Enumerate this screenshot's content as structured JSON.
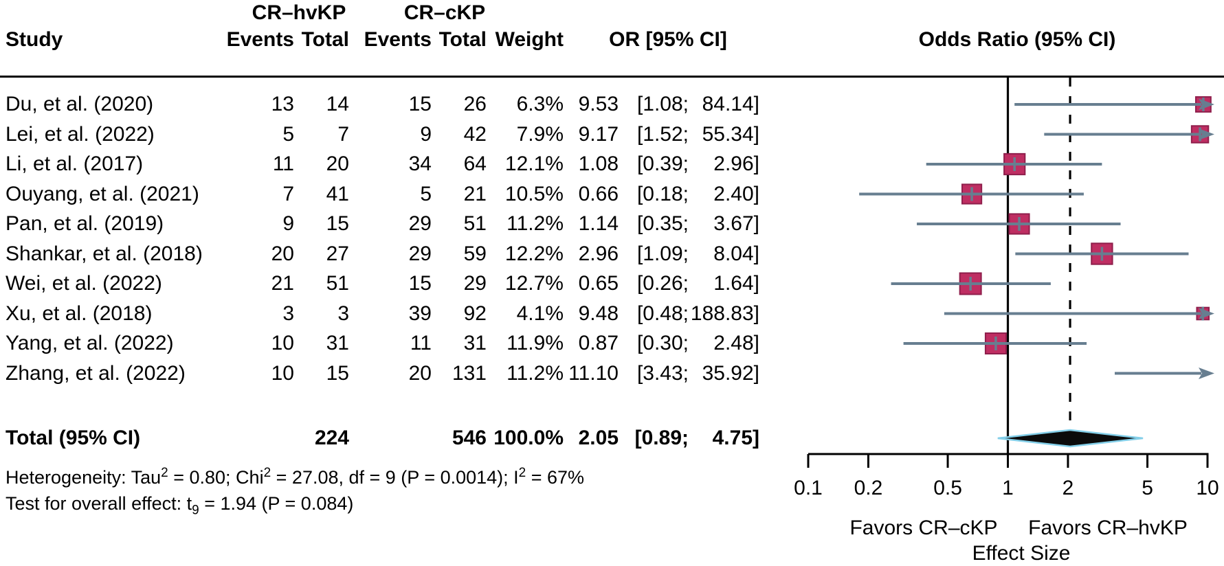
{
  "headers": {
    "group1": "CR–hvKP",
    "group2": "CR–cKP",
    "study": "Study",
    "events1": "Events",
    "total1": "Total",
    "events2": "Events",
    "total2": "Total",
    "weight": "Weight",
    "or_ci": "OR [95% CI]",
    "plot_title": "Odds Ratio (95% CI)"
  },
  "chart_data": {
    "type": "forest",
    "title": "Odds Ratio (95% CI)",
    "x_axis": {
      "scale": "log10",
      "label": "Effect Size",
      "ticks": [
        0.1,
        0.2,
        0.5,
        1,
        2,
        5,
        10
      ],
      "tick_labels": [
        "0.1",
        "0.2",
        "0.5",
        "1",
        "2",
        "5",
        "10"
      ],
      "ref_line": 1,
      "summary_dashed_line": 2.05
    },
    "favors": {
      "left": "Favors CR–cKP",
      "right": "Favors CR–hvKP"
    },
    "studies": [
      {
        "study": "Du, et al. (2020)",
        "events1": 13,
        "total1": 14,
        "events2": 15,
        "total2": 26,
        "weight": "6.3%",
        "weight_val": 6.3,
        "or": 9.53,
        "ci_low": 1.08,
        "ci_high": 84.14,
        "or_s": "9.53",
        "lo_s": "1.08",
        "hi_s": "84.14",
        "arrow_right": true
      },
      {
        "study": "Lei, et al. (2022)",
        "events1": 5,
        "total1": 7,
        "events2": 9,
        "total2": 42,
        "weight": "7.9%",
        "weight_val": 7.9,
        "or": 9.17,
        "ci_low": 1.52,
        "ci_high": 55.34,
        "or_s": "9.17",
        "lo_s": "1.52",
        "hi_s": "55.34",
        "arrow_right": true
      },
      {
        "study": "Li, et al. (2017)",
        "events1": 11,
        "total1": 20,
        "events2": 34,
        "total2": 64,
        "weight": "12.1%",
        "weight_val": 12.1,
        "or": 1.08,
        "ci_low": 0.39,
        "ci_high": 2.96,
        "or_s": "1.08",
        "lo_s": "0.39",
        "hi_s": "2.96",
        "arrow_right": false
      },
      {
        "study": "Ouyang, et al. (2021)",
        "events1": 7,
        "total1": 41,
        "events2": 5,
        "total2": 21,
        "weight": "10.5%",
        "weight_val": 10.5,
        "or": 0.66,
        "ci_low": 0.18,
        "ci_high": 2.4,
        "or_s": "0.66",
        "lo_s": "0.18",
        "hi_s": "2.40",
        "arrow_right": false
      },
      {
        "study": "Pan, et al. (2019)",
        "events1": 9,
        "total1": 15,
        "events2": 29,
        "total2": 51,
        "weight": "11.2%",
        "weight_val": 11.2,
        "or": 1.14,
        "ci_low": 0.35,
        "ci_high": 3.67,
        "or_s": "1.14",
        "lo_s": "0.35",
        "hi_s": "3.67",
        "arrow_right": false
      },
      {
        "study": "Shankar, et al. (2018)",
        "events1": 20,
        "total1": 27,
        "events2": 29,
        "total2": 59,
        "weight": "12.2%",
        "weight_val": 12.2,
        "or": 2.96,
        "ci_low": 1.09,
        "ci_high": 8.04,
        "or_s": "2.96",
        "lo_s": "1.09",
        "hi_s": "8.04",
        "arrow_right": false
      },
      {
        "study": "Wei, et al. (2022)",
        "events1": 21,
        "total1": 51,
        "events2": 15,
        "total2": 29,
        "weight": "12.7%",
        "weight_val": 12.7,
        "or": 0.65,
        "ci_low": 0.26,
        "ci_high": 1.64,
        "or_s": "0.65",
        "lo_s": "0.26",
        "hi_s": "1.64",
        "arrow_right": false
      },
      {
        "study": "Xu, et al. (2018)",
        "events1": 3,
        "total1": 3,
        "events2": 39,
        "total2": 92,
        "weight": "4.1%",
        "weight_val": 4.1,
        "or": 9.48,
        "ci_low": 0.48,
        "ci_high": 188.83,
        "or_s": "9.48",
        "lo_s": "0.48",
        "hi_s": "188.83",
        "arrow_right": true
      },
      {
        "study": "Yang, et al. (2022)",
        "events1": 10,
        "total1": 31,
        "events2": 11,
        "total2": 31,
        "weight": "11.9%",
        "weight_val": 11.9,
        "or": 0.87,
        "ci_low": 0.3,
        "ci_high": 2.48,
        "or_s": "0.87",
        "lo_s": "0.30",
        "hi_s": "2.48",
        "arrow_right": false
      },
      {
        "study": "Zhang, et al. (2022)",
        "events1": 10,
        "total1": 15,
        "events2": 20,
        "total2": 131,
        "weight": "11.2%",
        "weight_val": 11.2,
        "or": 11.1,
        "ci_low": 3.43,
        "ci_high": 35.92,
        "or_s": "11.10",
        "lo_s": "3.43",
        "hi_s": "35.92",
        "arrow_right": true
      }
    ],
    "total": {
      "label": "Total (95% CI)",
      "total1": 224,
      "total2": 546,
      "weight": "100.0%",
      "or": 2.05,
      "ci_low": 0.89,
      "ci_high": 4.75,
      "or_s": "2.05",
      "lo_s": "0.89",
      "hi_s": "4.75"
    }
  },
  "footnotes": {
    "heterogeneity": [
      {
        "t": "Heterogeneity: Tau"
      },
      {
        "sup": "2"
      },
      {
        "t": " = 0.80; Chi"
      },
      {
        "sup": "2"
      },
      {
        "t": " = 27.08, df = 9 (P = 0.0014); I"
      },
      {
        "sup": "2"
      },
      {
        "t": " = 67%"
      }
    ],
    "overall_effect": [
      {
        "t": "Test for overall effect: t"
      },
      {
        "sub": "9"
      },
      {
        "t": " = 1.94 (P = 0.084)"
      }
    ]
  },
  "colors": {
    "square_fill": "#bf2e62",
    "square_border": "#8f1f4c",
    "ci_line": "#677e90",
    "ref_line": "#000000",
    "dashed_line": "#000000",
    "diamond_fill": "#0b0b0b",
    "diamond_outline": "#84cfe9",
    "axis": "#000000",
    "text": "#000000"
  }
}
